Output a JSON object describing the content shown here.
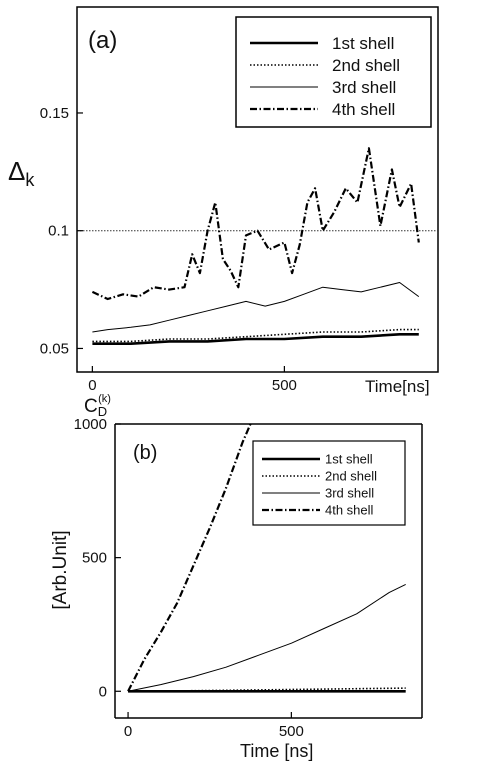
{
  "chart_data": [
    {
      "type": "line",
      "panel_label": "(a)",
      "ylabel": "Δk",
      "xlabel": "Time[ns]",
      "xlim": [
        -40,
        900
      ],
      "ylim": [
        0.04,
        0.195
      ],
      "xticks": [
        0,
        500
      ],
      "yticks": [
        0.05,
        0.1,
        0.15
      ],
      "xtick_labels": [
        "0",
        "500"
      ],
      "ytick_labels": [
        "0.05",
        "0.1",
        "0.15"
      ],
      "reference_line": 0.1,
      "legend_position": "top-right",
      "series": [
        {
          "name": "1st shell",
          "style": "solid-thick",
          "x": [
            0,
            100,
            200,
            300,
            400,
            500,
            600,
            700,
            800,
            850
          ],
          "y": [
            0.052,
            0.052,
            0.053,
            0.053,
            0.054,
            0.054,
            0.055,
            0.055,
            0.056,
            0.056
          ]
        },
        {
          "name": "2nd shell",
          "style": "dotted",
          "x": [
            0,
            100,
            200,
            300,
            400,
            500,
            600,
            700,
            800,
            850
          ],
          "y": [
            0.053,
            0.053,
            0.054,
            0.054,
            0.055,
            0.056,
            0.057,
            0.057,
            0.058,
            0.058
          ]
        },
        {
          "name": "3rd shell",
          "style": "solid-thin",
          "x": [
            0,
            40,
            100,
            150,
            200,
            250,
            300,
            350,
            400,
            450,
            500,
            550,
            600,
            650,
            700,
            750,
            800,
            850
          ],
          "y": [
            0.057,
            0.058,
            0.059,
            0.06,
            0.062,
            0.064,
            0.066,
            0.068,
            0.07,
            0.068,
            0.07,
            0.073,
            0.076,
            0.075,
            0.074,
            0.076,
            0.078,
            0.072
          ]
        },
        {
          "name": "4th shell",
          "style": "dash-dot",
          "x": [
            0,
            40,
            80,
            120,
            160,
            200,
            240,
            260,
            280,
            300,
            320,
            340,
            360,
            380,
            400,
            430,
            460,
            500,
            520,
            540,
            560,
            580,
            600,
            630,
            660,
            690,
            720,
            750,
            780,
            800,
            830,
            850
          ],
          "y": [
            0.074,
            0.071,
            0.073,
            0.072,
            0.076,
            0.075,
            0.076,
            0.09,
            0.082,
            0.1,
            0.112,
            0.088,
            0.083,
            0.076,
            0.098,
            0.1,
            0.092,
            0.095,
            0.082,
            0.094,
            0.112,
            0.118,
            0.1,
            0.108,
            0.118,
            0.112,
            0.135,
            0.102,
            0.126,
            0.11,
            0.12,
            0.095
          ]
        }
      ]
    },
    {
      "type": "line",
      "panel_label": "(b)",
      "ylabel": "[Arb.Unit]",
      "xlabel": "Time [ns]",
      "top_label_main": "C",
      "top_label_sub": "D",
      "top_label_sup": "(k)",
      "xlim": [
        -40,
        900
      ],
      "ylim": [
        -100,
        1000
      ],
      "xticks": [
        0,
        500
      ],
      "yticks": [
        0,
        500,
        1000
      ],
      "xtick_labels": [
        "0",
        "500"
      ],
      "ytick_labels": [
        "0",
        "500",
        "1000"
      ],
      "legend_position": "top-right",
      "series": [
        {
          "name": "1st shell",
          "style": "solid-thick",
          "x": [
            0,
            850
          ],
          "y": [
            0,
            0
          ]
        },
        {
          "name": "2nd shell",
          "style": "dotted",
          "x": [
            0,
            200,
            400,
            600,
            850
          ],
          "y": [
            0,
            2,
            5,
            8,
            12
          ]
        },
        {
          "name": "3rd shell",
          "style": "solid-thin",
          "x": [
            0,
            100,
            200,
            300,
            400,
            500,
            600,
            700,
            800,
            850
          ],
          "y": [
            0,
            25,
            55,
            90,
            135,
            180,
            235,
            290,
            370,
            400
          ]
        },
        {
          "name": "4th shell",
          "style": "dash-dot",
          "x": [
            0,
            50,
            100,
            150,
            200,
            250,
            300,
            350,
            375
          ],
          "y": [
            0,
            120,
            220,
            330,
            470,
            610,
            760,
            930,
            1000
          ]
        }
      ]
    }
  ]
}
